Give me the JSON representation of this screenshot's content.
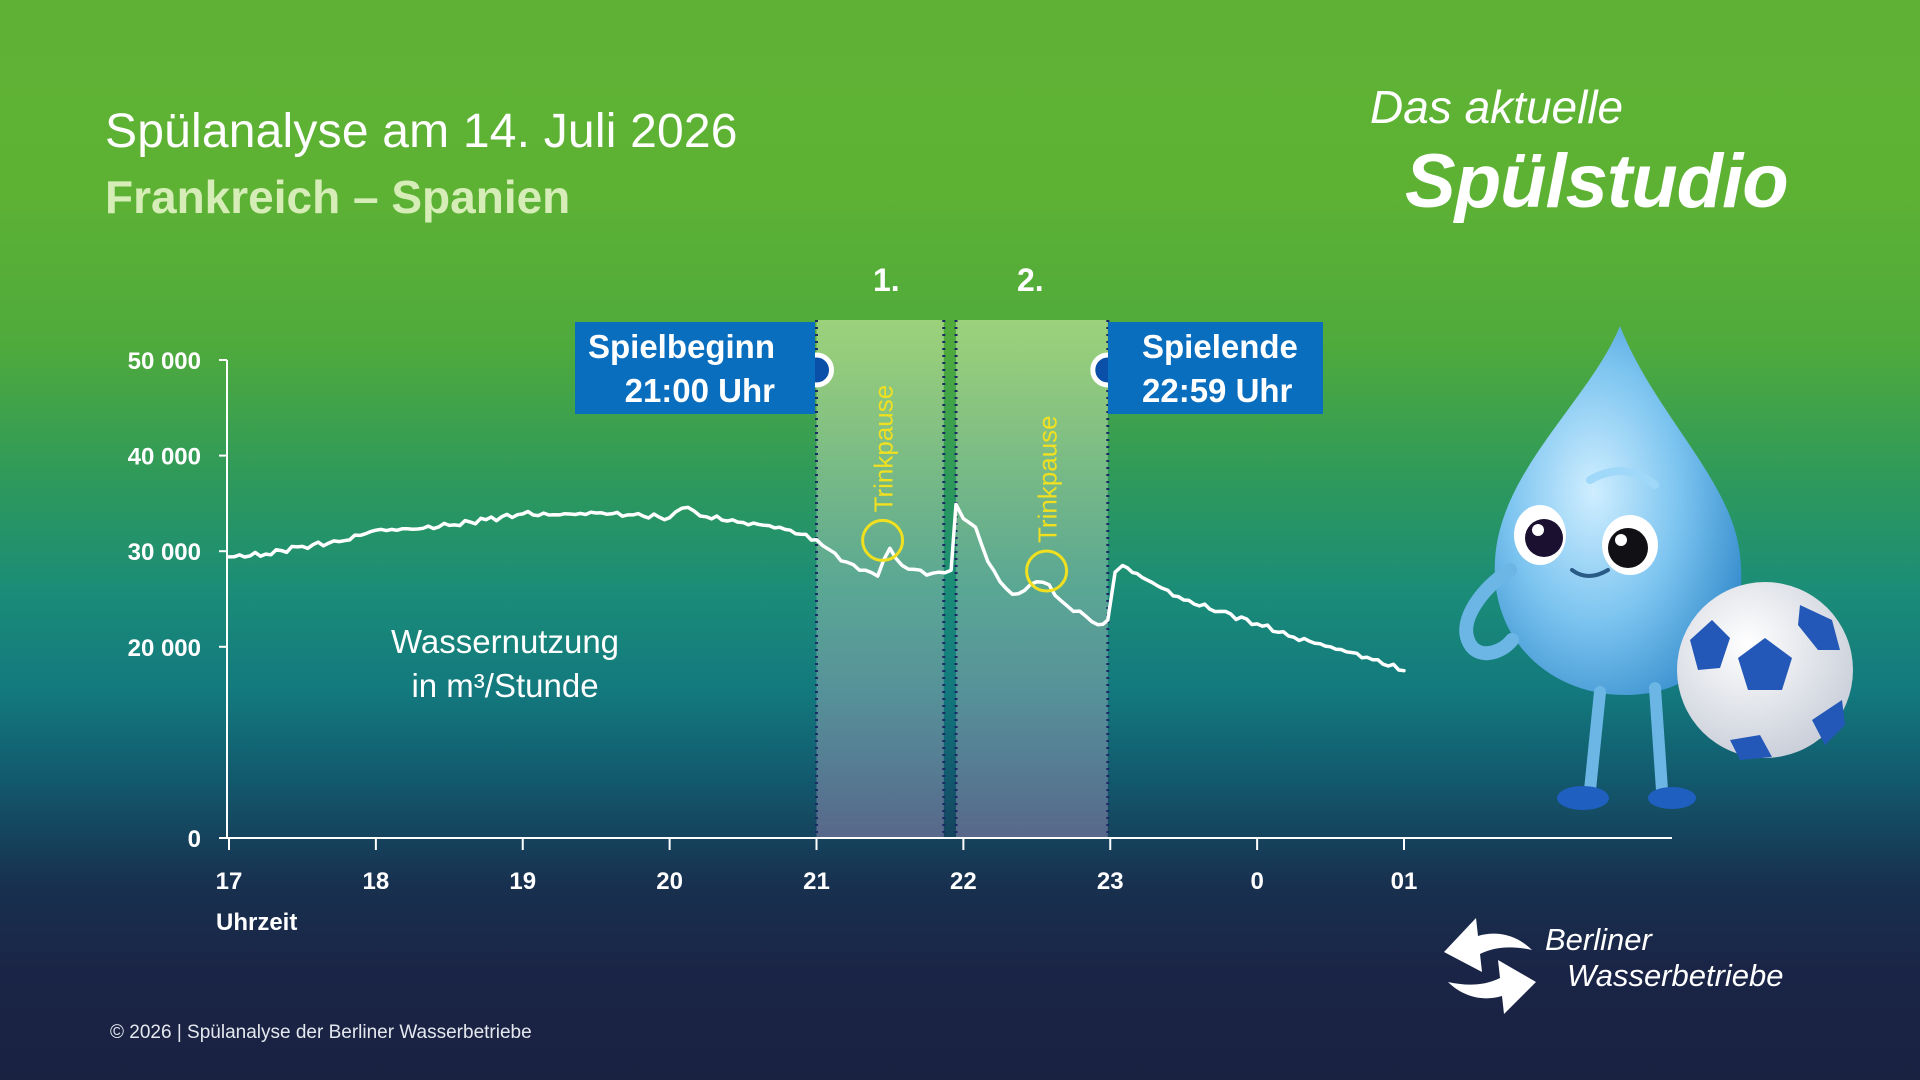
{
  "header": {
    "title": "Spülanalyse am 14. Juli 2026",
    "subtitle": "Frankreich – Spanien"
  },
  "brand": {
    "line1": "Das aktuelle",
    "line2": "Spülstudio"
  },
  "annotations": {
    "start_label": "Spielbeginn",
    "start_time": "21:00 Uhr",
    "end_label": "Spielende",
    "end_time": "22:59 Uhr",
    "half1": "1.",
    "half2": "2.",
    "break1": "Trinkpause",
    "break2": "Trinkpause",
    "series_label_line1": "Wassernutzung",
    "series_label_line2": "in m³/Stunde"
  },
  "footer": {
    "copyright": "© 2026 | Spülanalyse der Berliner Wasserbetriebe",
    "logo_line1": "Berliner",
    "logo_line2": "Wasserbetriebe"
  },
  "colors": {
    "line": "#ffffff",
    "highlight": "#f0e020",
    "box": "#0a6ebf",
    "halftime_band": "#a8d98a"
  },
  "icons": [
    "water-drop-mascot",
    "football-icon",
    "berliner-wasserbetriebe-logo-icon"
  ],
  "chart_data": {
    "type": "line",
    "xlabel": "Uhrzeit",
    "ylabel": "",
    "x_ticks": [
      "17",
      "18",
      "19",
      "20",
      "21",
      "22",
      "23",
      "0",
      "01"
    ],
    "y_ticks": [
      "0",
      "20 000",
      "30 000",
      "40 000",
      "50 000"
    ],
    "ylim": [
      0,
      50000
    ],
    "xlim_hours": [
      17,
      25
    ],
    "grid": false,
    "periods": [
      {
        "name": "1.",
        "from": "21:00",
        "to": "21:52"
      },
      {
        "name": "2.",
        "from": "21:57",
        "to": "22:59"
      }
    ],
    "series": [
      {
        "name": "Wassernutzung in m³/Stunde",
        "x": [
          "17:00",
          "17:15",
          "17:30",
          "17:45",
          "18:00",
          "18:15",
          "18:30",
          "18:45",
          "19:00",
          "19:15",
          "19:30",
          "19:45",
          "20:00",
          "20:05",
          "20:10",
          "20:15",
          "20:30",
          "20:45",
          "21:00",
          "21:05",
          "21:10",
          "21:15",
          "21:20",
          "21:25",
          "21:30",
          "21:35",
          "21:40",
          "21:45",
          "21:50",
          "21:55",
          "21:57",
          "22:00",
          "22:05",
          "22:10",
          "22:15",
          "22:20",
          "22:25",
          "22:30",
          "22:35",
          "22:40",
          "22:45",
          "22:50",
          "22:55",
          "22:59",
          "23:02",
          "23:05",
          "23:15",
          "23:30",
          "23:45",
          "00:00",
          "00:15",
          "00:30",
          "00:45",
          "01:00"
        ],
        "values": [
          29400,
          29700,
          30500,
          31000,
          32200,
          32300,
          32700,
          33300,
          33900,
          33800,
          34000,
          33800,
          33500,
          34500,
          34200,
          33600,
          33000,
          32500,
          31200,
          30200,
          29000,
          28600,
          28000,
          27400,
          30300,
          28500,
          28100,
          27500,
          27800,
          28000,
          34900,
          33400,
          32500,
          28900,
          26800,
          25500,
          25900,
          26800,
          26500,
          24800,
          23700,
          23200,
          22300,
          22800,
          27800,
          28500,
          27000,
          24900,
          23700,
          22400,
          21000,
          20000,
          18900,
          17500
        ]
      }
    ],
    "highlights": [
      {
        "label": "Trinkpause",
        "x": "21:27",
        "y": 30500
      },
      {
        "label": "Trinkpause",
        "x": "22:34",
        "y": 27300
      }
    ]
  }
}
